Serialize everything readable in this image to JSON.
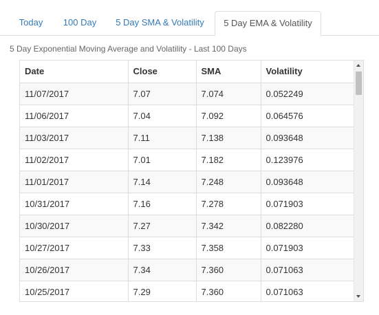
{
  "tabs": [
    {
      "label": "Today",
      "active": false
    },
    {
      "label": "100 Day",
      "active": false
    },
    {
      "label": "5 Day SMA & Volatility",
      "active": false
    },
    {
      "label": "5 Day EMA & Volatility",
      "active": true
    }
  ],
  "subtitle": "5 Day Exponential Moving Average and Volatility - Last 100 Days",
  "table": {
    "headers": [
      "Date",
      "Close",
      "SMA",
      "Volatility"
    ],
    "rows": [
      [
        "11/07/2017",
        "7.07",
        "7.074",
        "0.052249"
      ],
      [
        "11/06/2017",
        "7.04",
        "7.092",
        "0.064576"
      ],
      [
        "11/03/2017",
        "7.11",
        "7.138",
        "0.093648"
      ],
      [
        "11/02/2017",
        "7.01",
        "7.182",
        "0.123976"
      ],
      [
        "11/01/2017",
        "7.14",
        "7.248",
        "0.093648"
      ],
      [
        "10/31/2017",
        "7.16",
        "7.278",
        "0.071903"
      ],
      [
        "10/30/2017",
        "7.27",
        "7.342",
        "0.082280"
      ],
      [
        "10/27/2017",
        "7.33",
        "7.358",
        "0.071903"
      ],
      [
        "10/26/2017",
        "7.34",
        "7.360",
        "0.071063"
      ],
      [
        "10/25/2017",
        "7.29",
        "7.360",
        "0.071063"
      ]
    ]
  },
  "scrollbar": {
    "position": 0.0
  }
}
